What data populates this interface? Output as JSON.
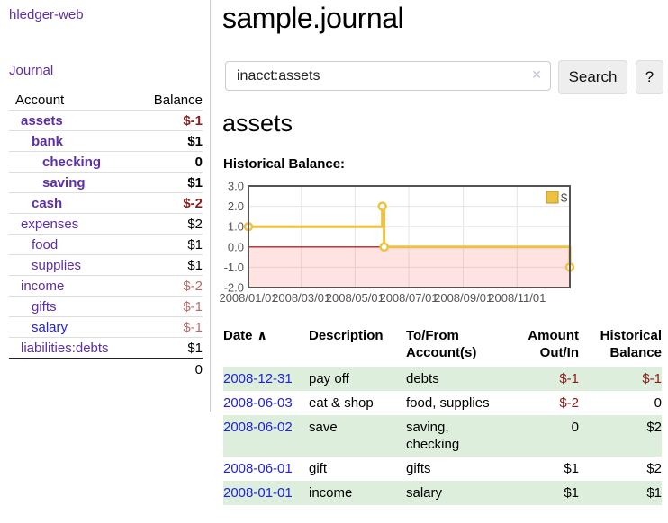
{
  "colors": {
    "link_purple": "#5c2fa8",
    "link_blue": "#2222dd",
    "negative_strong": "#8b1c1c",
    "negative_muted": "#b96a6a",
    "row_stripe_green": "#ddeedd",
    "series_gold": "#edc240",
    "negative_region_pink": "#fbdede",
    "zero_line_red": "#a00000",
    "chart_border_gray": "#545454"
  },
  "sidebar": {
    "app_title": "hledger-web",
    "journal_link": "Journal",
    "accounts_table": {
      "account_header": "Account",
      "balance_header": "Balance",
      "rows": [
        {
          "name": "assets",
          "balance": "$-1"
        },
        {
          "name": "bank",
          "balance": "$1"
        },
        {
          "name": "checking",
          "balance": "0"
        },
        {
          "name": "saving",
          "balance": "$1"
        },
        {
          "name": "cash",
          "balance": "$-2"
        },
        {
          "name": "expenses",
          "balance": "$2"
        },
        {
          "name": "food",
          "balance": "$1"
        },
        {
          "name": "supplies",
          "balance": "$1"
        },
        {
          "name": "income",
          "balance": "$-2"
        },
        {
          "name": "gifts",
          "balance": "$-1"
        },
        {
          "name": "salary",
          "balance": "$-1"
        },
        {
          "name": "liabilities:debts",
          "balance": "$1"
        }
      ],
      "total": "0"
    }
  },
  "main": {
    "page_title": "sample.journal",
    "search": {
      "value": "inacct:assets",
      "clear_icon": "✕",
      "search_button": "Search",
      "help_button": "?"
    },
    "account_heading": "assets",
    "chart_title": "Historical Balance:"
  },
  "chart_data": {
    "type": "line",
    "step": true,
    "title": "Historical Balance",
    "series": [
      {
        "name": "$",
        "color": "#edc240",
        "points": [
          {
            "date": "2008/01/01",
            "value": 1
          },
          {
            "date": "2008/06/01",
            "value": 2
          },
          {
            "date": "2008/06/03",
            "value": 0
          },
          {
            "date": "2008/12/31",
            "value": -1
          }
        ]
      }
    ],
    "x_ticks": [
      "2008/01/01",
      "2008/03/01",
      "2008/05/01",
      "2008/07/01",
      "2008/09/01",
      "2008/11/01"
    ],
    "y_ticks": [
      {
        "label": "3.0",
        "value": 3
      },
      {
        "label": "2.0",
        "value": 2
      },
      {
        "label": "1.0",
        "value": 1
      },
      {
        "label": "0.0",
        "value": 0
      },
      {
        "label": "-1.0",
        "value": -1
      },
      {
        "label": "-2.0",
        "value": -2
      }
    ],
    "xlim": [
      "2008/01/01",
      "2008/12/31"
    ],
    "ylim": [
      -2,
      3
    ],
    "grid": true,
    "legend": {
      "label": "$",
      "position": "top-right"
    },
    "negative_region_below": 0
  },
  "register": {
    "headers": {
      "date": "Date",
      "sort_icon": "∧",
      "description": "Description",
      "accounts": "To/From Account(s)",
      "amount": "Amount Out/In",
      "balance": "Historical Balance"
    },
    "rows": [
      {
        "date": "2008-12-31",
        "description": "pay off",
        "accounts": "debts",
        "amount": "$-1",
        "balance": "$-1"
      },
      {
        "date": "2008-06-03",
        "description": "eat & shop",
        "accounts": "food, supplies",
        "amount": "$-2",
        "balance": "0"
      },
      {
        "date": "2008-06-02",
        "description": "save",
        "accounts": "saving, checking",
        "amount": "0",
        "balance": "$2"
      },
      {
        "date": "2008-06-01",
        "description": "gift",
        "accounts": "gifts",
        "amount": "$1",
        "balance": "$2"
      },
      {
        "date": "2008-01-01",
        "description": "income",
        "accounts": "salary",
        "amount": "$1",
        "balance": "$1"
      }
    ]
  }
}
